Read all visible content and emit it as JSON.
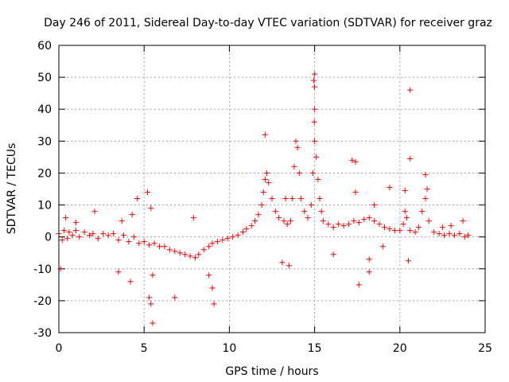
{
  "chart_data": {
    "type": "scatter",
    "title": "Day 246 of 2011, Sidereal Day-to-day VTEC variation (SDTVAR) for receiver graz",
    "xlabel": "GPS time / hours",
    "ylabel": "SDTVAR / TECUs",
    "xlim": [
      0,
      25
    ],
    "ylim": [
      -30,
      60
    ],
    "x_ticks": [
      0,
      5,
      10,
      15,
      20,
      25
    ],
    "y_ticks": [
      -30,
      -20,
      -10,
      0,
      10,
      20,
      30,
      40,
      50,
      60
    ],
    "grid": true,
    "marker": "+",
    "color": "#ff0000",
    "series": [
      {
        "name": "SDTVAR",
        "points": [
          [
            0.0,
            1.0
          ],
          [
            0.2,
            -1.0
          ],
          [
            0.3,
            2.0
          ],
          [
            0.5,
            -0.5
          ],
          [
            0.6,
            1.5
          ],
          [
            0.8,
            0.5
          ],
          [
            1.0,
            2.0
          ],
          [
            1.2,
            0.0
          ],
          [
            1.5,
            1.5
          ],
          [
            1.8,
            0.5
          ],
          [
            2.0,
            1.0
          ],
          [
            2.3,
            -0.5
          ],
          [
            2.6,
            1.0
          ],
          [
            2.9,
            0.5
          ],
          [
            3.2,
            1.0
          ],
          [
            3.5,
            -1.0
          ],
          [
            3.8,
            0.5
          ],
          [
            4.1,
            -1.5
          ],
          [
            4.4,
            0.0
          ],
          [
            4.7,
            -2.0
          ],
          [
            5.0,
            -1.5
          ],
          [
            5.3,
            -2.5
          ],
          [
            5.6,
            -2.0
          ],
          [
            5.9,
            -3.0
          ],
          [
            6.2,
            -3.0
          ],
          [
            6.5,
            -4.0
          ],
          [
            6.8,
            -4.5
          ],
          [
            7.1,
            -5.0
          ],
          [
            7.4,
            -5.5
          ],
          [
            7.7,
            -6.0
          ],
          [
            8.0,
            -6.5
          ],
          [
            8.2,
            -5.5
          ],
          [
            8.5,
            -4.0
          ],
          [
            8.8,
            -3.0
          ],
          [
            9.0,
            -2.0
          ],
          [
            9.3,
            -1.5
          ],
          [
            9.6,
            -1.0
          ],
          [
            9.9,
            -0.5
          ],
          [
            10.2,
            0.0
          ],
          [
            10.5,
            0.5
          ],
          [
            10.8,
            1.5
          ],
          [
            11.0,
            2.5
          ],
          [
            11.3,
            3.5
          ],
          [
            11.5,
            5.0
          ],
          [
            11.7,
            7.0
          ],
          [
            11.9,
            10.0
          ],
          [
            12.0,
            14.0
          ],
          [
            12.1,
            18.0
          ],
          [
            12.2,
            20.0
          ],
          [
            12.3,
            17.0
          ],
          [
            12.5,
            12.0
          ],
          [
            12.7,
            8.0
          ],
          [
            12.9,
            6.0
          ],
          [
            13.2,
            5.0
          ],
          [
            13.4,
            4.0
          ],
          [
            13.6,
            5.0
          ],
          [
            13.7,
            12.0
          ],
          [
            13.8,
            22.0
          ],
          [
            13.9,
            30.0
          ],
          [
            14.0,
            28.0
          ],
          [
            14.1,
            20.0
          ],
          [
            14.2,
            12.0
          ],
          [
            14.4,
            8.0
          ],
          [
            14.6,
            6.0
          ],
          [
            14.8,
            10.0
          ],
          [
            14.9,
            20.0
          ],
          [
            15.0,
            30.0
          ],
          [
            15.1,
            25.0
          ],
          [
            15.2,
            18.0
          ],
          [
            15.3,
            12.0
          ],
          [
            15.4,
            8.0
          ],
          [
            15.5,
            5.0
          ],
          [
            15.8,
            4.0
          ],
          [
            16.1,
            3.0
          ],
          [
            16.4,
            4.0
          ],
          [
            16.7,
            3.5
          ],
          [
            17.0,
            4.0
          ],
          [
            17.3,
            5.0
          ],
          [
            17.6,
            4.5
          ],
          [
            17.9,
            5.5
          ],
          [
            18.2,
            6.0
          ],
          [
            18.5,
            5.0
          ],
          [
            18.8,
            4.0
          ],
          [
            19.1,
            3.0
          ],
          [
            19.4,
            2.5
          ],
          [
            19.7,
            2.0
          ],
          [
            20.0,
            2.0
          ],
          [
            20.2,
            4.0
          ],
          [
            20.3,
            8.0
          ],
          [
            20.4,
            6.0
          ],
          [
            20.6,
            2.0
          ],
          [
            20.9,
            1.5
          ],
          [
            21.1,
            3.0
          ],
          [
            21.3,
            8.0
          ],
          [
            21.5,
            12.0
          ],
          [
            21.7,
            5.0
          ],
          [
            22.0,
            1.5
          ],
          [
            22.3,
            1.0
          ],
          [
            22.6,
            0.5
          ],
          [
            22.9,
            1.0
          ],
          [
            23.2,
            0.5
          ],
          [
            23.5,
            1.0
          ],
          [
            23.8,
            0.0
          ],
          [
            24.0,
            0.5
          ],
          [
            0.1,
            -10.0
          ],
          [
            2.1,
            8.0
          ],
          [
            3.7,
            5.0
          ],
          [
            4.3,
            7.0
          ],
          [
            4.6,
            12.0
          ],
          [
            5.2,
            14.0
          ],
          [
            5.4,
            9.0
          ],
          [
            5.3,
            -19.0
          ],
          [
            5.4,
            -21.0
          ],
          [
            5.5,
            -27.0
          ],
          [
            5.5,
            -12.0
          ],
          [
            6.8,
            -19.0
          ],
          [
            9.1,
            -21.0
          ],
          [
            9.0,
            -16.0
          ],
          [
            8.8,
            -12.0
          ],
          [
            7.9,
            6.0
          ],
          [
            3.5,
            -11.0
          ],
          [
            4.2,
            -14.0
          ],
          [
            12.1,
            32.0
          ],
          [
            13.3,
            12.0
          ],
          [
            13.1,
            -8.0
          ],
          [
            13.5,
            -9.0
          ],
          [
            15.0,
            51.0
          ],
          [
            14.95,
            49.0
          ],
          [
            15.0,
            47.0
          ],
          [
            15.0,
            40.0
          ],
          [
            14.98,
            36.0
          ],
          [
            17.2,
            24.0
          ],
          [
            17.4,
            23.5
          ],
          [
            17.4,
            14.0
          ],
          [
            17.6,
            -15.0
          ],
          [
            18.2,
            -11.0
          ],
          [
            18.2,
            -7.0
          ],
          [
            19.4,
            15.5
          ],
          [
            20.6,
            46.0
          ],
          [
            20.6,
            24.5
          ],
          [
            21.5,
            19.5
          ],
          [
            21.6,
            15.0
          ],
          [
            20.3,
            14.5
          ],
          [
            20.5,
            -7.5
          ],
          [
            16.1,
            -5.5
          ],
          [
            18.5,
            10.0
          ],
          [
            19.0,
            -3.0
          ],
          [
            22.5,
            3.0
          ],
          [
            23.0,
            3.5
          ],
          [
            23.7,
            5.0
          ],
          [
            1.0,
            4.5
          ],
          [
            0.4,
            6.0
          ]
        ]
      }
    ]
  }
}
